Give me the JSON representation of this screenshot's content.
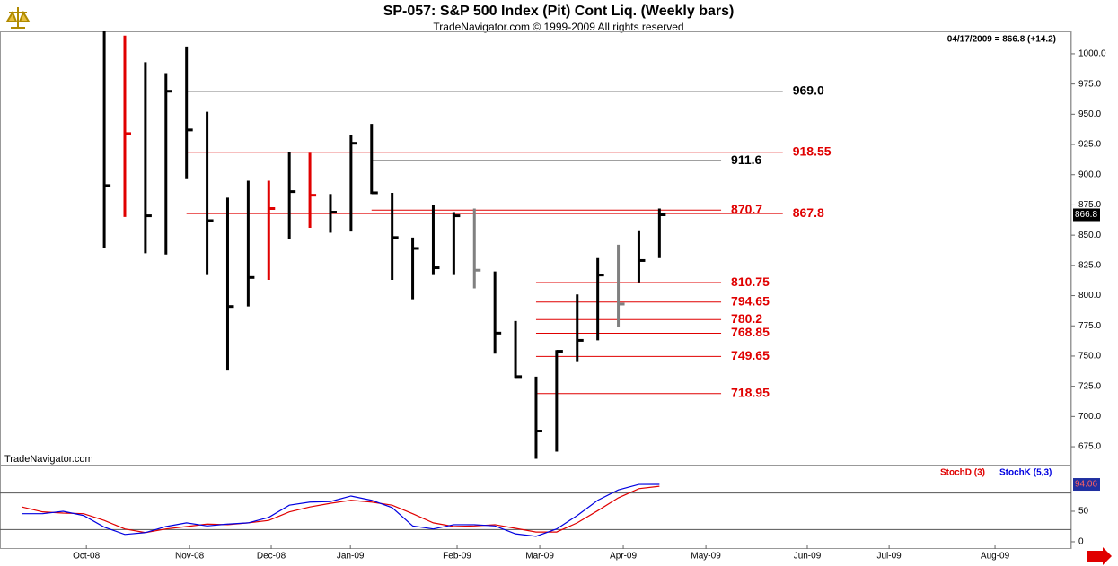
{
  "chart_data": [
    {
      "type": "hlc",
      "title": "SP-057:  S&P 500 Index (Pit) Cont Liq.  (Weekly bars)",
      "subtitle": "TradeNavigator.com © 1999-2009 All rights reserved",
      "date_note": "04/17/2009 = 866.8 (+14.2)",
      "watermark": "TradeNavigator.com",
      "categories": [
        null,
        null,
        null,
        null,
        null,
        null,
        null,
        null,
        null,
        null,
        null,
        null,
        null,
        null,
        null,
        null,
        null,
        null,
        null,
        null,
        null,
        null,
        null,
        null,
        null,
        null,
        null,
        null,
        null,
        null,
        null,
        null
      ],
      "high": [
        null,
        null,
        null,
        null,
        1020,
        1015,
        993,
        984,
        1006,
        952,
        881,
        895,
        895,
        919,
        918,
        884,
        933,
        942,
        885,
        848,
        875,
        869,
        872,
        820,
        779,
        733,
        755,
        801,
        831,
        842,
        854,
        872
      ],
      "low": [
        null,
        null,
        null,
        null,
        839,
        865,
        835,
        834,
        897,
        817,
        738,
        791,
        813,
        847,
        856,
        852,
        853,
        884,
        813,
        797,
        817,
        817,
        806,
        752,
        732,
        665,
        671,
        745,
        763,
        774,
        811,
        831
      ],
      "close": [
        null,
        null,
        null,
        null,
        891,
        934,
        866,
        969,
        937,
        862,
        791,
        815,
        872,
        886,
        883,
        869,
        926,
        885,
        848,
        839,
        823,
        866,
        821,
        769,
        733,
        688,
        754,
        763,
        817,
        793,
        829,
        866.8
      ],
      "colors": [
        null,
        null,
        null,
        null,
        "#000000",
        "#e00000",
        "#000000",
        "#000000",
        "#000000",
        "#000000",
        "#000000",
        "#000000",
        "#e00000",
        "#000000",
        "#e00000",
        "#000000",
        "#000000",
        "#000000",
        "#000000",
        "#000000",
        "#000000",
        "#000000",
        "#808080",
        "#000000",
        "#000000",
        "#000000",
        "#000000",
        "#000000",
        "#000000",
        "#808080",
        "#000000",
        "#000000"
      ],
      "levels": [
        {
          "value": 969,
          "label": "969.0",
          "color": "#000000",
          "from": 8,
          "to": 37
        },
        {
          "value": 918.55,
          "label": "918.55",
          "color": "#e00000",
          "from": 8,
          "to": 37
        },
        {
          "value": 911.6,
          "label": "911.6",
          "color": "#000000",
          "from": 17,
          "to": 34
        },
        {
          "value": 870.7,
          "label": "870.7",
          "color": "#e00000",
          "from": 17,
          "to": 34
        },
        {
          "value": 867.8,
          "label": "867.8",
          "color": "#e00000",
          "from": 8,
          "to": 37
        },
        {
          "value": 810.75,
          "label": "810.75",
          "color": "#e00000",
          "from": 25,
          "to": 34
        },
        {
          "value": 794.65,
          "label": "794.65",
          "color": "#e00000",
          "from": 25,
          "to": 34
        },
        {
          "value": 780.2,
          "label": "780.2",
          "color": "#e00000",
          "from": 25,
          "to": 34
        },
        {
          "value": 768.85,
          "label": "768.85",
          "color": "#e00000",
          "from": 25,
          "to": 34
        },
        {
          "value": 749.65,
          "label": "749.65",
          "color": "#e00000",
          "from": 25,
          "to": 34
        },
        {
          "value": 718.95,
          "label": "718.95",
          "color": "#e00000",
          "from": 25,
          "to": 34
        }
      ],
      "xlim": [
        -1.07,
        51.03
      ],
      "xticks": [
        {
          "value": 3.13,
          "label": "Oct-08"
        },
        {
          "value": 8.15,
          "label": "Nov-08"
        },
        {
          "value": 12.12,
          "label": "Dec-08"
        },
        {
          "value": 15.97,
          "label": "Jan-09"
        },
        {
          "value": 21.16,
          "label": "Feb-09"
        },
        {
          "value": 25.18,
          "label": "Mar-09"
        },
        {
          "value": 29.24,
          "label": "Apr-09"
        },
        {
          "value": 33.26,
          "label": "May-09"
        },
        {
          "value": 38.19,
          "label": "Jun-09"
        },
        {
          "value": 42.17,
          "label": "Jul-09"
        },
        {
          "value": 47.32,
          "label": "Aug-09"
        }
      ],
      "ylim": [
        660.2,
        1018.5
      ],
      "yticks": [
        {
          "value": 675,
          "label": "675.0"
        },
        {
          "value": 700,
          "label": "700.0"
        },
        {
          "value": 725,
          "label": "725.0"
        },
        {
          "value": 750,
          "label": "750.0"
        },
        {
          "value": 775,
          "label": "775.0"
        },
        {
          "value": 800,
          "label": "800.0"
        },
        {
          "value": 825,
          "label": "825.0"
        },
        {
          "value": 850,
          "label": "850.0"
        },
        {
          "value": 875,
          "label": "875.0"
        },
        {
          "value": 900,
          "label": "900.0"
        },
        {
          "value": 925,
          "label": "925.0"
        },
        {
          "value": 950,
          "label": "950.0"
        },
        {
          "value": 975,
          "label": "975.0"
        },
        {
          "value": 1000,
          "label": "1000.0"
        }
      ]
    },
    {
      "type": "line",
      "series": [
        {
          "name": "StochD (3)",
          "color": "#e00000",
          "values": [
            57,
            49,
            47,
            46,
            35,
            21,
            15,
            21,
            25,
            29,
            28,
            31,
            35,
            49,
            57,
            63,
            68,
            65,
            60,
            46,
            31,
            25,
            26,
            28,
            22,
            16,
            16,
            31,
            51,
            72,
            87,
            91
          ]
        },
        {
          "name": "StochK (5,3)",
          "color": "#0000e0",
          "values": [
            46,
            46,
            50,
            43,
            24,
            12,
            15,
            25,
            31,
            26,
            29,
            31,
            40,
            60,
            65,
            66,
            75,
            68,
            56,
            26,
            21,
            28,
            28,
            26,
            13,
            9,
            21,
            43,
            68,
            85,
            94,
            94.06
          ]
        }
      ],
      "levels": [
        20,
        80
      ],
      "ylim": [
        -11.8,
        123.5
      ],
      "yticks": [
        0,
        50
      ]
    }
  ]
}
